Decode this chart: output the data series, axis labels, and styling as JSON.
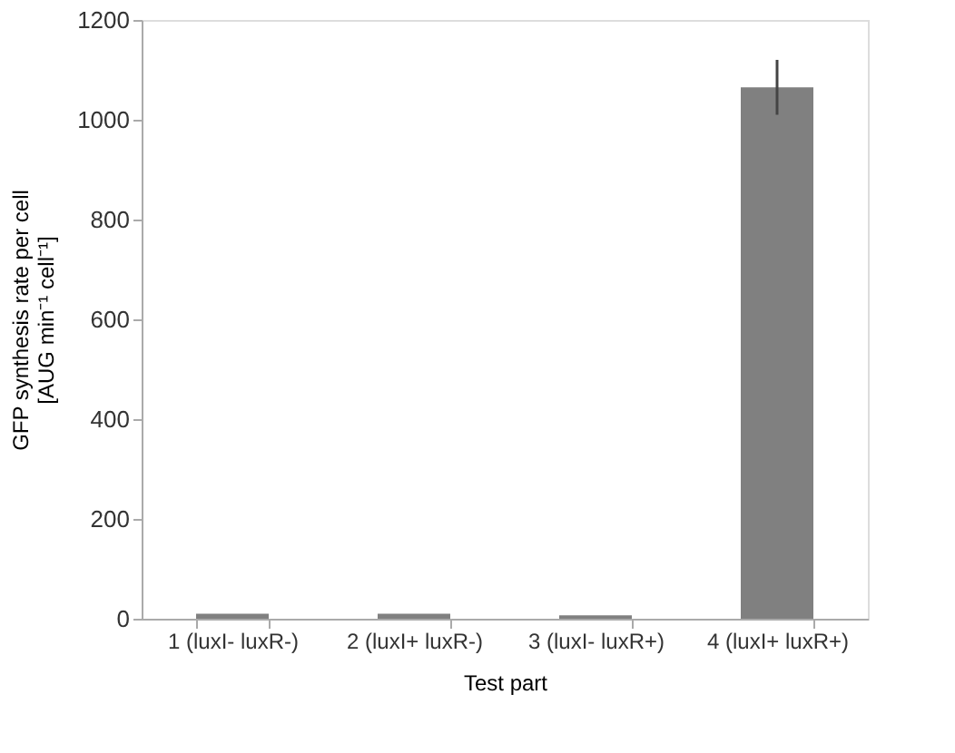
{
  "chart_data": {
    "type": "bar",
    "xlabel": "Test part",
    "ylabel": "GFP synthesis rate per cell\n[AUG min⁻¹ cell⁻¹]",
    "categories": [
      "1 (luxI- luxR-)",
      "2 (luxI+ luxR-)",
      "3 (luxI- luxR+)",
      "4 (luxI+ luxR+)"
    ],
    "values": [
      10,
      10,
      7,
      1065
    ],
    "errors": [
      null,
      null,
      null,
      55
    ],
    "color": "#808080",
    "ylim": [
      0,
      1200
    ],
    "yticks": [
      0,
      200,
      400,
      600,
      800,
      1000,
      1200
    ],
    "grid": false
  }
}
